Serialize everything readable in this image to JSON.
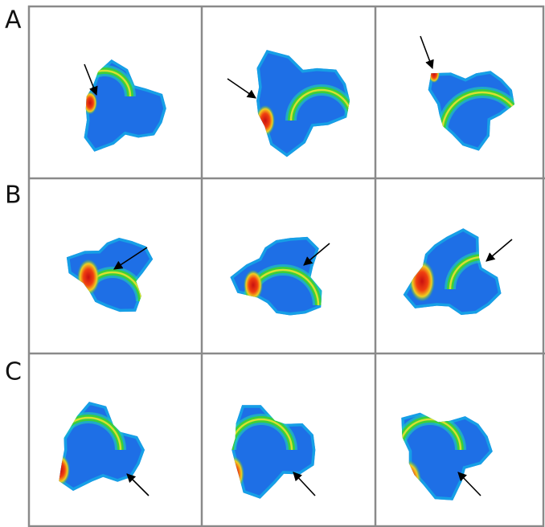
{
  "figure": {
    "row_labels": [
      "A",
      "B",
      "C"
    ]
  }
}
